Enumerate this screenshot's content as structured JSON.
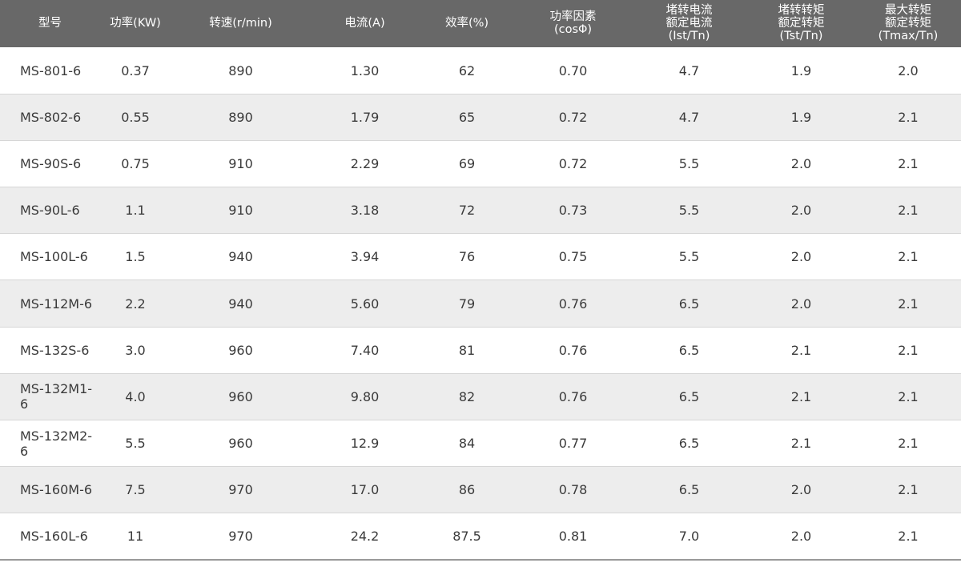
{
  "table": {
    "headers": [
      "型号",
      "功率(KW)",
      "转速(r/min)",
      "电流(A)",
      "效率(%)",
      "功率因素\n(cosΦ)",
      "堵转电流\n额定电流\n(Ist/Tn)",
      "堵转转矩\n额定转矩\n(Tst/Tn)",
      "最大转矩\n额定转矩\n(Tmax/Tn)"
    ],
    "rows": [
      [
        "MS-801-6",
        "0.37",
        "890",
        "1.30",
        "62",
        "0.70",
        "4.7",
        "1.9",
        "2.0"
      ],
      [
        "MS-802-6",
        "0.55",
        "890",
        "1.79",
        "65",
        "0.72",
        "4.7",
        "1.9",
        "2.1"
      ],
      [
        "MS-90S-6",
        "0.75",
        "910",
        "2.29",
        "69",
        "0.72",
        "5.5",
        "2.0",
        "2.1"
      ],
      [
        "MS-90L-6",
        "1.1",
        "910",
        "3.18",
        "72",
        "0.73",
        "5.5",
        "2.0",
        "2.1"
      ],
      [
        "MS-100L-6",
        "1.5",
        "940",
        "3.94",
        "76",
        "0.75",
        "5.5",
        "2.0",
        "2.1"
      ],
      [
        "MS-112M-6",
        "2.2",
        "940",
        "5.60",
        "79",
        "0.76",
        "6.5",
        "2.0",
        "2.1"
      ],
      [
        "MS-132S-6",
        "3.0",
        "960",
        "7.40",
        "81",
        "0.76",
        "6.5",
        "2.1",
        "2.1"
      ],
      [
        "MS-132M1-6",
        "4.0",
        "960",
        "9.80",
        "82",
        "0.76",
        "6.5",
        "2.1",
        "2.1"
      ],
      [
        "MS-132M2-6",
        "5.5",
        "960",
        "12.9",
        "84",
        "0.77",
        "6.5",
        "2.1",
        "2.1"
      ],
      [
        "MS-160M-6",
        "7.5",
        "970",
        "17.0",
        "86",
        "0.78",
        "6.5",
        "2.0",
        "2.1"
      ],
      [
        "MS-160L-6",
        "11",
        "970",
        "24.2",
        "87.5",
        "0.81",
        "7.0",
        "2.0",
        "2.1"
      ]
    ]
  },
  "colors": {
    "header_bg": "#686868",
    "header_text": "#ffffff",
    "row_alt_bg": "#ededed",
    "row_bg": "#ffffff",
    "body_text": "#3a3a3a"
  }
}
